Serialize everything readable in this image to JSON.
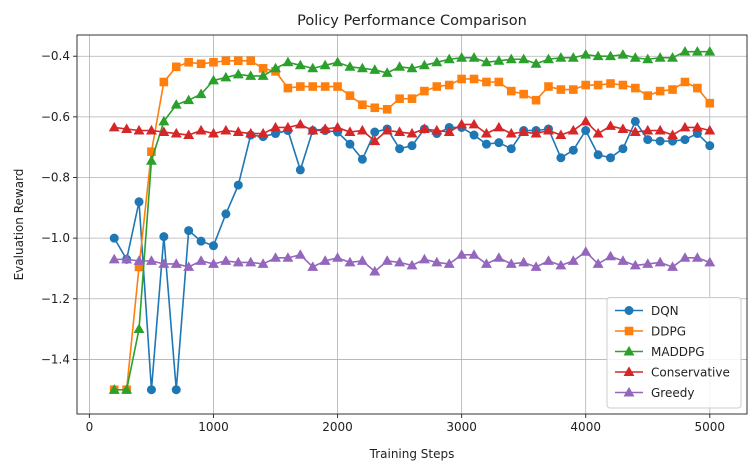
{
  "chart_data": {
    "type": "line",
    "title": "Policy Performance Comparison",
    "xlabel": "Training Steps",
    "ylabel": "Evaluation Reward",
    "xlim": [
      -100,
      5300
    ],
    "ylim": [
      -1.58,
      -0.33
    ],
    "xticks": [
      0,
      1000,
      2000,
      3000,
      4000,
      5000
    ],
    "xtick_labels": [
      "0",
      "1000",
      "2000",
      "3000",
      "4000",
      "5000"
    ],
    "yticks": [
      -1.4,
      -1.2,
      -1.0,
      -0.8,
      -0.6,
      -0.4
    ],
    "ytick_labels": [
      "−1.4",
      "−1.2",
      "−1.0",
      "−0.8",
      "−0.6",
      "−0.4"
    ],
    "grid": true,
    "legend_position": "lower-right",
    "x": [
      200,
      300,
      400,
      500,
      600,
      700,
      800,
      900,
      1000,
      1100,
      1200,
      1300,
      1400,
      1500,
      1600,
      1700,
      1800,
      1900,
      2000,
      2100,
      2200,
      2300,
      2400,
      2500,
      2600,
      2700,
      2800,
      2900,
      3000,
      3100,
      3200,
      3300,
      3400,
      3500,
      3600,
      3700,
      3800,
      3900,
      4000,
      4100,
      4200,
      4300,
      4400,
      4500,
      4600,
      4700,
      4800,
      4900,
      5000
    ],
    "series": [
      {
        "name": "DQN",
        "color": "#1f77b4",
        "marker": "circle",
        "values": [
          -1.0,
          -1.07,
          -0.88,
          -1.5,
          -0.995,
          -1.5,
          -0.975,
          -1.01,
          -1.025,
          -0.92,
          -0.825,
          -0.66,
          -0.665,
          -0.655,
          -0.645,
          -0.775,
          -0.645,
          -0.645,
          -0.65,
          -0.69,
          -0.74,
          -0.65,
          -0.64,
          -0.705,
          -0.695,
          -0.64,
          -0.655,
          -0.635,
          -0.635,
          -0.66,
          -0.69,
          -0.685,
          -0.705,
          -0.645,
          -0.645,
          -0.64,
          -0.735,
          -0.71,
          -0.645,
          -0.725,
          -0.735,
          -0.705,
          -0.615,
          -0.675,
          -0.68,
          -0.68,
          -0.675,
          -0.655,
          -0.695
        ]
      },
      {
        "name": "DDPG",
        "color": "#ff7f0e",
        "marker": "square",
        "values": [
          -1.5,
          -1.5,
          -1.095,
          -0.715,
          -0.485,
          -0.435,
          -0.42,
          -0.425,
          -0.42,
          -0.415,
          -0.415,
          -0.415,
          -0.44,
          -0.45,
          -0.505,
          -0.5,
          -0.5,
          -0.5,
          -0.5,
          -0.53,
          -0.56,
          -0.57,
          -0.575,
          -0.54,
          -0.54,
          -0.515,
          -0.5,
          -0.495,
          -0.475,
          -0.475,
          -0.485,
          -0.485,
          -0.515,
          -0.525,
          -0.545,
          -0.5,
          -0.51,
          -0.51,
          -0.495,
          -0.495,
          -0.49,
          -0.495,
          -0.505,
          -0.53,
          -0.515,
          -0.51,
          -0.485,
          -0.505,
          -0.555
        ]
      },
      {
        "name": "MADDPG",
        "color": "#2ca02c",
        "marker": "triangle-up",
        "values": [
          -1.5,
          -1.5,
          -1.3,
          -0.745,
          -0.615,
          -0.56,
          -0.545,
          -0.525,
          -0.48,
          -0.47,
          -0.46,
          -0.465,
          -0.465,
          -0.44,
          -0.42,
          -0.43,
          -0.44,
          -0.43,
          -0.42,
          -0.435,
          -0.44,
          -0.445,
          -0.455,
          -0.435,
          -0.44,
          -0.43,
          -0.42,
          -0.41,
          -0.405,
          -0.405,
          -0.42,
          -0.415,
          -0.41,
          -0.41,
          -0.425,
          -0.41,
          -0.405,
          -0.405,
          -0.395,
          -0.4,
          -0.4,
          -0.395,
          -0.405,
          -0.41,
          -0.405,
          -0.405,
          -0.385,
          -0.385,
          -0.385
        ]
      },
      {
        "name": "Conservative",
        "color": "#d62728",
        "marker": "triangle-up",
        "values": [
          -0.635,
          -0.64,
          -0.645,
          -0.645,
          -0.65,
          -0.655,
          -0.66,
          -0.645,
          -0.655,
          -0.645,
          -0.65,
          -0.655,
          -0.655,
          -0.635,
          -0.635,
          -0.625,
          -0.645,
          -0.64,
          -0.635,
          -0.65,
          -0.645,
          -0.68,
          -0.645,
          -0.65,
          -0.655,
          -0.64,
          -0.645,
          -0.65,
          -0.625,
          -0.625,
          -0.655,
          -0.635,
          -0.655,
          -0.65,
          -0.655,
          -0.645,
          -0.66,
          -0.645,
          -0.615,
          -0.655,
          -0.63,
          -0.64,
          -0.65,
          -0.645,
          -0.645,
          -0.66,
          -0.635,
          -0.635,
          -0.645
        ]
      },
      {
        "name": "Greedy",
        "color": "#9467bd",
        "marker": "triangle-up",
        "values": [
          -1.07,
          -1.07,
          -1.075,
          -1.075,
          -1.085,
          -1.085,
          -1.095,
          -1.075,
          -1.085,
          -1.075,
          -1.08,
          -1.08,
          -1.085,
          -1.065,
          -1.065,
          -1.055,
          -1.095,
          -1.075,
          -1.065,
          -1.08,
          -1.075,
          -1.11,
          -1.075,
          -1.08,
          -1.09,
          -1.07,
          -1.08,
          -1.085,
          -1.055,
          -1.055,
          -1.085,
          -1.065,
          -1.085,
          -1.08,
          -1.095,
          -1.075,
          -1.09,
          -1.075,
          -1.045,
          -1.085,
          -1.06,
          -1.075,
          -1.09,
          -1.085,
          -1.08,
          -1.095,
          -1.065,
          -1.065,
          -1.08
        ]
      }
    ]
  }
}
